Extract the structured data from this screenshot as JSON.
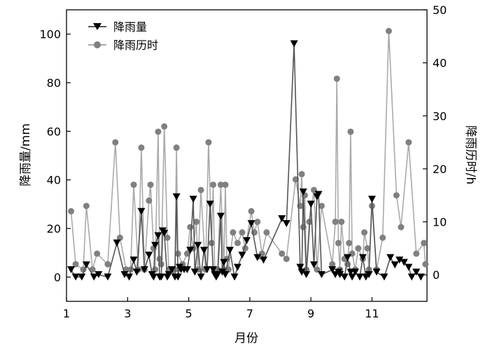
{
  "chart_data": {
    "type": "line",
    "title": "",
    "xlabel": "月份",
    "ylabel_left": "降雨量/mm",
    "ylabel_right": "降雨历时/h",
    "xlim": [
      1,
      12.8
    ],
    "ylim_left": [
      -10,
      110
    ],
    "ylim_right": [
      -5,
      50
    ],
    "x_ticks": [
      1,
      3,
      5,
      7,
      9,
      11
    ],
    "x_tick_labels": [
      "1",
      "3",
      "5",
      "7",
      "9",
      "11"
    ],
    "y_ticks_left": [
      0,
      20,
      40,
      60,
      80,
      100
    ],
    "y_tick_labels_left": [
      "0",
      "20",
      "40",
      "60",
      "80",
      "100"
    ],
    "y_ticks_right": [
      0,
      10,
      20,
      30,
      40,
      50
    ],
    "y_tick_labels_right": [
      "0",
      "10",
      "20",
      "30",
      "40",
      "50"
    ],
    "grid": false,
    "legend_position": "top-left",
    "series": [
      {
        "name": "降雨量",
        "axis": "left",
        "color": "#555555",
        "marker": "triangle-down",
        "x": [
          1.15,
          1.3,
          1.5,
          1.65,
          1.9,
          2.05,
          2.35,
          2.65,
          2.9,
          3.05,
          3.2,
          3.3,
          3.45,
          3.55,
          3.7,
          3.8,
          3.85,
          3.9,
          4.0,
          4.05,
          4.1,
          4.15,
          4.2,
          4.3,
          4.35,
          4.45,
          4.55,
          4.6,
          4.65,
          4.7,
          4.75,
          4.85,
          4.95,
          5.05,
          5.15,
          5.2,
          5.3,
          5.4,
          5.5,
          5.6,
          5.7,
          5.8,
          5.85,
          5.9,
          5.95,
          6.05,
          6.1,
          6.15,
          6.2,
          6.35,
          6.5,
          6.6,
          6.75,
          6.9,
          7.05,
          7.25,
          7.45,
          8.05,
          8.2,
          8.45,
          8.65,
          8.7,
          8.75,
          8.85,
          9.0,
          9.1,
          9.2,
          9.25,
          9.35,
          9.7,
          9.8,
          9.9,
          9.95,
          10.1,
          10.2,
          10.3,
          10.35,
          10.45,
          10.6,
          10.7,
          10.8,
          10.9,
          11.0,
          11.15,
          11.4,
          11.6,
          11.75,
          11.9,
          12.05,
          12.2,
          12.3,
          12.45,
          12.6
        ],
        "values": [
          3,
          0,
          0,
          5,
          0,
          1,
          0,
          14,
          1,
          0,
          7,
          2,
          27,
          3,
          9,
          1,
          0,
          13,
          17,
          0,
          0,
          19,
          18,
          0,
          1,
          3,
          0,
          33,
          0,
          4,
          3,
          3,
          3,
          11,
          32,
          2,
          13,
          0,
          11,
          3,
          30,
          3,
          1,
          0,
          1,
          25,
          2,
          6,
          1,
          11,
          0,
          4,
          9,
          15,
          22,
          8,
          7,
          24,
          22,
          96,
          4,
          2,
          35,
          1,
          30,
          5,
          33,
          34,
          1,
          3,
          1,
          2,
          1,
          0,
          8,
          2,
          0,
          2,
          0,
          8,
          0,
          1,
          32,
          2,
          0,
          8,
          5,
          7,
          6,
          4,
          0,
          2,
          0
        ]
      },
      {
        "name": "降雨历时",
        "axis": "right",
        "color": "#aaaaaa",
        "marker": "circle",
        "x": [
          1.15,
          1.3,
          1.55,
          1.65,
          1.85,
          2.0,
          2.35,
          2.6,
          2.75,
          2.95,
          3.1,
          3.2,
          3.35,
          3.45,
          3.55,
          3.7,
          3.75,
          3.85,
          3.9,
          4.0,
          4.05,
          4.1,
          4.2,
          4.3,
          4.35,
          4.45,
          4.55,
          4.6,
          4.65,
          4.8,
          4.95,
          5.05,
          5.15,
          5.25,
          5.3,
          5.4,
          5.55,
          5.65,
          5.75,
          5.8,
          5.85,
          5.95,
          6.05,
          6.15,
          6.2,
          6.25,
          6.3,
          6.45,
          6.6,
          6.75,
          6.85,
          7.05,
          7.15,
          7.25,
          7.4,
          7.55,
          8.05,
          8.2,
          8.5,
          8.65,
          8.7,
          8.75,
          8.8,
          8.85,
          8.95,
          9.1,
          9.2,
          9.35,
          9.7,
          9.8,
          9.85,
          9.9,
          9.95,
          10.0,
          10.1,
          10.2,
          10.25,
          10.3,
          10.35,
          10.45,
          10.55,
          10.7,
          10.75,
          10.85,
          10.9,
          11.0,
          11.15,
          11.35,
          11.55,
          11.8,
          11.95,
          12.2,
          12.45,
          12.7,
          12.75
        ],
        "values": [
          12,
          2,
          1,
          13,
          1,
          4,
          2,
          25,
          7,
          1,
          1,
          17,
          1,
          24,
          1,
          14,
          17,
          5,
          1,
          27,
          3,
          2,
          28,
          7,
          1,
          1,
          1,
          24,
          4,
          2,
          4,
          9,
          5,
          10,
          1,
          16,
          1,
          25,
          6,
          17,
          1,
          1,
          17,
          1,
          17,
          3,
          1,
          8,
          6,
          8,
          5,
          12,
          8,
          10,
          4,
          8,
          4,
          3,
          18,
          13,
          19,
          9,
          15,
          1,
          10,
          16,
          1,
          13,
          2,
          10,
          37,
          6,
          1,
          10,
          3,
          2,
          6,
          27,
          4,
          1,
          5,
          3,
          8,
          5,
          1,
          13,
          1,
          7,
          46,
          15,
          9,
          25,
          4,
          6,
          2
        ]
      }
    ]
  }
}
